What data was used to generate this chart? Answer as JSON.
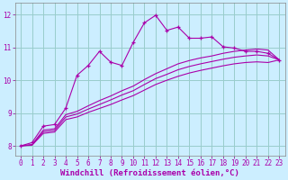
{
  "bg_color": "#cceeff",
  "grid_color": "#99cccc",
  "line_color": "#aa00aa",
  "xlabel": "Windchill (Refroidissement éolien,°C)",
  "xlabel_fontsize": 6.5,
  "xlim": [
    -0.5,
    23.5
  ],
  "ylim": [
    7.7,
    12.35
  ],
  "xticks": [
    0,
    1,
    2,
    3,
    4,
    5,
    6,
    7,
    8,
    9,
    10,
    11,
    12,
    13,
    14,
    15,
    16,
    17,
    18,
    19,
    20,
    21,
    22,
    23
  ],
  "yticks": [
    8,
    9,
    10,
    11,
    12
  ],
  "tick_fontsize": 5.5,
  "series": [
    {
      "x": [
        0,
        1,
        2,
        3,
        4,
        5,
        6,
        7,
        8,
        9,
        10,
        11,
        12,
        13,
        14,
        15,
        16,
        17,
        18,
        19,
        20,
        21,
        22,
        23
      ],
      "y": [
        8.0,
        8.1,
        8.6,
        8.65,
        9.15,
        10.15,
        10.45,
        10.88,
        10.55,
        10.45,
        11.15,
        11.75,
        11.98,
        11.52,
        11.62,
        11.28,
        11.28,
        11.32,
        11.02,
        10.98,
        10.88,
        10.88,
        10.82,
        10.62
      ],
      "marker": true
    },
    {
      "x": [
        0,
        1,
        2,
        3,
        4,
        5,
        6,
        7,
        8,
        9,
        10,
        11,
        12,
        13,
        14,
        15,
        16,
        17,
        18,
        19,
        20,
        21,
        22,
        23
      ],
      "y": [
        8.0,
        8.04,
        8.48,
        8.52,
        8.95,
        9.05,
        9.22,
        9.38,
        9.52,
        9.68,
        9.82,
        10.02,
        10.2,
        10.35,
        10.5,
        10.6,
        10.68,
        10.74,
        10.82,
        10.88,
        10.92,
        10.95,
        10.92,
        10.62
      ],
      "marker": false
    },
    {
      "x": [
        0,
        1,
        2,
        3,
        4,
        5,
        6,
        7,
        8,
        9,
        10,
        11,
        12,
        13,
        14,
        15,
        16,
        17,
        18,
        19,
        20,
        21,
        22,
        23
      ],
      "y": [
        8.0,
        8.03,
        8.43,
        8.47,
        8.88,
        8.97,
        9.12,
        9.26,
        9.4,
        9.55,
        9.68,
        9.87,
        10.05,
        10.18,
        10.32,
        10.42,
        10.5,
        10.57,
        10.64,
        10.7,
        10.74,
        10.77,
        10.74,
        10.62
      ],
      "marker": false
    },
    {
      "x": [
        0,
        1,
        2,
        3,
        4,
        5,
        6,
        7,
        8,
        9,
        10,
        11,
        12,
        13,
        14,
        15,
        16,
        17,
        18,
        19,
        20,
        21,
        22,
        23
      ],
      "y": [
        8.0,
        8.02,
        8.38,
        8.42,
        8.8,
        8.88,
        9.02,
        9.14,
        9.26,
        9.4,
        9.53,
        9.7,
        9.87,
        10.0,
        10.12,
        10.22,
        10.3,
        10.37,
        10.44,
        10.5,
        10.54,
        10.56,
        10.54,
        10.62
      ],
      "marker": false
    }
  ]
}
